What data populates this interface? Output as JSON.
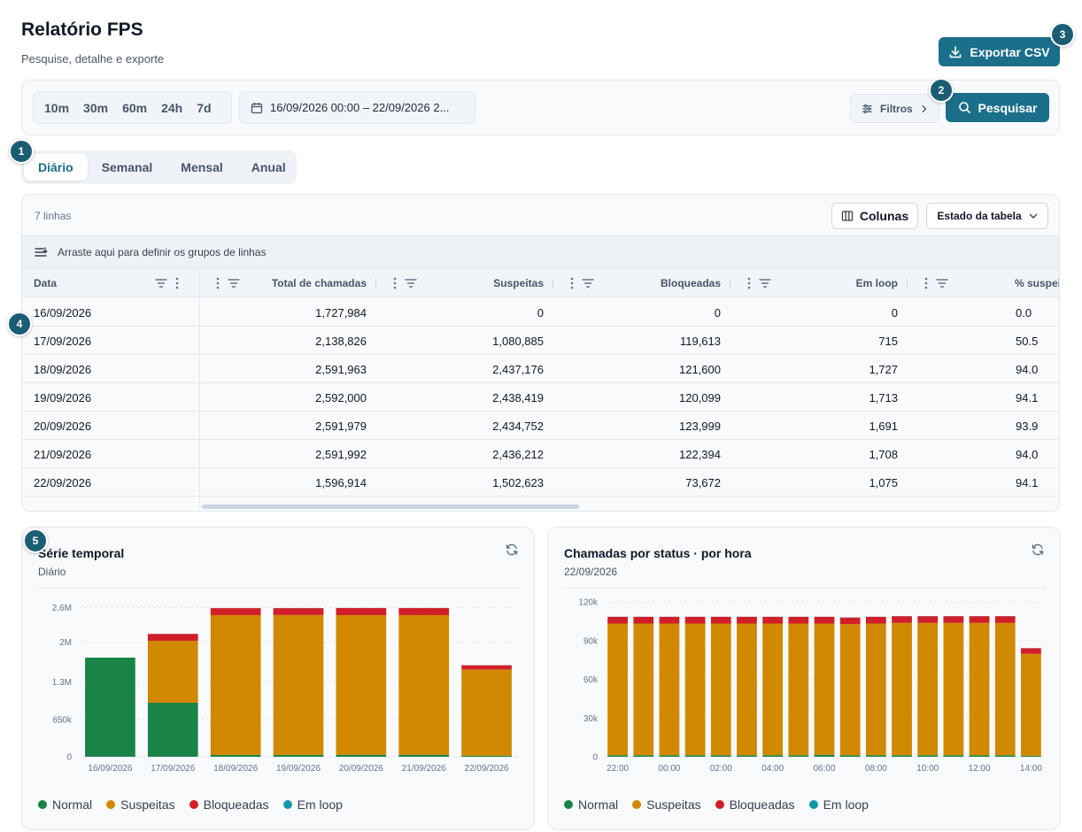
{
  "header": {
    "title": "Relatório FPS",
    "subtitle": "Pesquise, detalhe e exporte",
    "export_label": "Exportar CSV"
  },
  "badges": [
    "1",
    "2",
    "3",
    "4",
    "5"
  ],
  "filters": {
    "quick_ranges": [
      "10m",
      "30m",
      "60m",
      "24h",
      "7d"
    ],
    "date_range": "16/09/2026 00:00 – 22/09/2026 2...",
    "filters_label": "Filtros",
    "search_label": "Pesquisar"
  },
  "tabs": [
    {
      "label": "Diário",
      "active": true
    },
    {
      "label": "Semanal",
      "active": false
    },
    {
      "label": "Mensal",
      "active": false
    },
    {
      "label": "Anual",
      "active": false
    }
  ],
  "table": {
    "row_count": "7 linhas",
    "columns_label": "Colunas",
    "state_label": "Estado da tabela",
    "group_hint": "Arraste aqui para definir os grupos de linhas",
    "headers": [
      "Data",
      "Total de chamadas",
      "Suspeitas",
      "Bloqueadas",
      "Em loop",
      "% suspeit"
    ],
    "rows": [
      [
        "16/09/2026",
        "1,727,984",
        "0",
        "0",
        "0",
        "0.0"
      ],
      [
        "17/09/2026",
        "2,138,826",
        "1,080,885",
        "119,613",
        "715",
        "50.5"
      ],
      [
        "18/09/2026",
        "2,591,963",
        "2,437,176",
        "121,600",
        "1,727",
        "94.0"
      ],
      [
        "19/09/2026",
        "2,592,000",
        "2,438,419",
        "120,099",
        "1,713",
        "94.1"
      ],
      [
        "20/09/2026",
        "2,591,979",
        "2,434,752",
        "123,999",
        "1,691",
        "93.9"
      ],
      [
        "21/09/2026",
        "2,591,992",
        "2,436,212",
        "122,394",
        "1,708",
        "94.0"
      ],
      [
        "22/09/2026",
        "1,596,914",
        "1,502,623",
        "73,672",
        "1,075",
        "94.1"
      ]
    ]
  },
  "colors": {
    "accent": "#1b6f8a",
    "normal": "#1a8447",
    "suspeitas": "#d08900",
    "bloqueadas": "#d11f29",
    "em_loop": "#1796a8"
  },
  "legend": [
    "Normal",
    "Suspeitas",
    "Bloqueadas",
    "Em loop"
  ],
  "chart_data": [
    {
      "type": "bar",
      "stacked": true,
      "title": "Série temporal",
      "subtitle": "Diário",
      "categories": [
        "16/09/2026",
        "17/09/2026",
        "18/09/2026",
        "19/09/2026",
        "20/09/2026",
        "21/09/2026",
        "22/09/2026"
      ],
      "yticks": [
        "0",
        "650k",
        "1.3M",
        "2M",
        "2.6M"
      ],
      "ytick_values": [
        0,
        650000,
        1300000,
        2000000,
        2600000
      ],
      "ylim": [
        0,
        2700000
      ],
      "grid": true,
      "legend_position": "bottom",
      "series": [
        {
          "name": "Normal",
          "values": [
            1727984,
            941000,
            32000,
            32000,
            33000,
            33000,
            19000
          ]
        },
        {
          "name": "Suspeitas",
          "values": [
            0,
            1080885,
            2437176,
            2438419,
            2434752,
            2436212,
            1502623
          ]
        },
        {
          "name": "Bloqueadas",
          "values": [
            0,
            119613,
            121600,
            120099,
            123999,
            122394,
            73672
          ]
        },
        {
          "name": "Em loop",
          "values": [
            0,
            715,
            1727,
            1713,
            1691,
            1708,
            1075
          ]
        }
      ]
    },
    {
      "type": "bar",
      "stacked": true,
      "title": "Chamadas por status · por hora",
      "subtitle": "22/09/2026",
      "categories": [
        "22:00",
        "23:00",
        "00:00",
        "01:00",
        "02:00",
        "03:00",
        "04:00",
        "05:00",
        "06:00",
        "07:00",
        "08:00",
        "09:00",
        "10:00",
        "11:00",
        "12:00",
        "13:00",
        "14:00"
      ],
      "xtick_labels": [
        "22:00",
        "",
        "00:00",
        "",
        "02:00",
        "",
        "04:00",
        "",
        "06:00",
        "",
        "08:00",
        "",
        "10:00",
        "",
        "12:00",
        "",
        "14:00"
      ],
      "yticks": [
        "0",
        "30k",
        "60k",
        "90k",
        "120k"
      ],
      "ytick_values": [
        0,
        30000,
        60000,
        90000,
        120000
      ],
      "ylim": [
        0,
        120000
      ],
      "grid": true,
      "legend_position": "bottom",
      "series": [
        {
          "name": "Normal",
          "values": [
            1200,
            1200,
            1200,
            1200,
            1200,
            1200,
            1200,
            1200,
            1500,
            1200,
            1200,
            1200,
            1200,
            1200,
            1200,
            1200,
            800
          ]
        },
        {
          "name": "Suspeitas",
          "values": [
            102000,
            102000,
            102000,
            102000,
            102000,
            102000,
            102000,
            102000,
            101700,
            101500,
            102000,
            102500,
            102500,
            102500,
            102500,
            102500,
            79000
          ]
        },
        {
          "name": "Bloqueadas",
          "values": [
            5200,
            5200,
            5200,
            5200,
            5200,
            5200,
            5200,
            5200,
            5200,
            5200,
            5200,
            5200,
            5200,
            5200,
            5200,
            5200,
            4300
          ]
        },
        {
          "name": "Em loop",
          "values": [
            100,
            100,
            100,
            100,
            100,
            100,
            100,
            100,
            100,
            100,
            100,
            100,
            100,
            100,
            100,
            100,
            60
          ]
        }
      ]
    }
  ]
}
